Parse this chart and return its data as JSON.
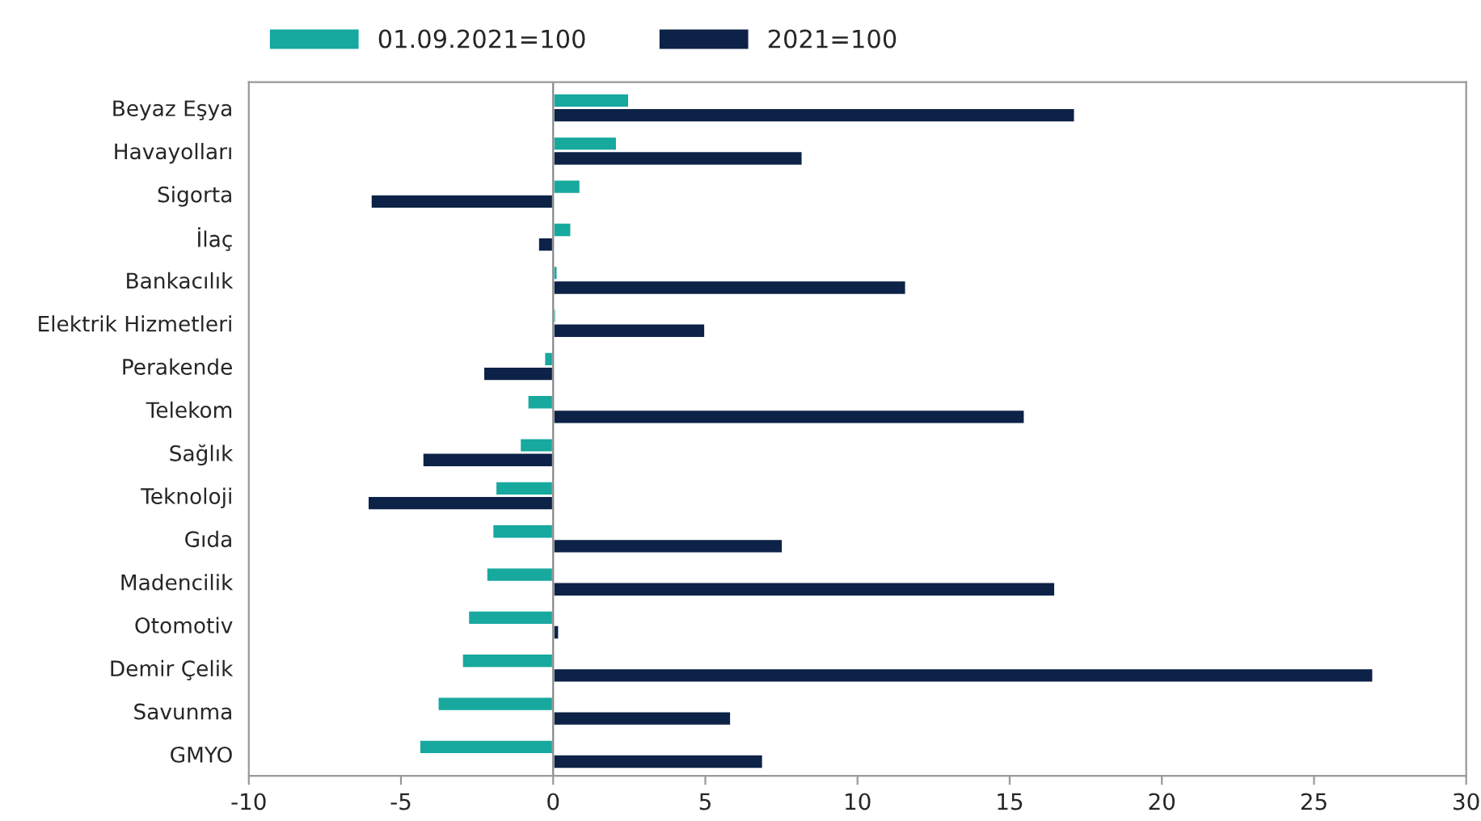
{
  "chart_data": {
    "type": "bar",
    "orientation": "horizontal",
    "categories": [
      "Beyaz Eşya",
      "Havayolları",
      "Sigorta",
      "İlaç",
      "Bankacılık",
      "Elektrik Hizmetleri",
      "Perakende",
      "Telekom",
      "Sağlık",
      "Teknoloji",
      "Gıda",
      "Madencilik",
      "Otomotiv",
      "Demir Çelik",
      "Savunma",
      "GMYO"
    ],
    "series": [
      {
        "name": "01.09.2021=100",
        "color": "#17a89e",
        "values": [
          2.5,
          2.1,
          0.9,
          0.6,
          0.15,
          0.1,
          -0.3,
          -0.85,
          -1.1,
          -1.9,
          -2.0,
          -2.2,
          -2.8,
          -3.0,
          -3.8,
          -4.4
        ]
      },
      {
        "name": "2021=100",
        "color": "#0c2246",
        "values": [
          17.15,
          8.2,
          -6.0,
          -0.5,
          11.6,
          5.0,
          -2.3,
          15.5,
          -4.3,
          -6.1,
          7.55,
          16.5,
          0.2,
          26.95,
          5.85,
          6.9
        ]
      }
    ],
    "xlim": [
      -10,
      30
    ],
    "xticks": [
      -10,
      -5,
      0,
      5,
      10,
      15,
      20,
      25,
      30
    ],
    "grid": false,
    "ref_lines": [
      {
        "axis": "x",
        "value": 0,
        "color": "#888888"
      }
    ],
    "legend": "top"
  }
}
